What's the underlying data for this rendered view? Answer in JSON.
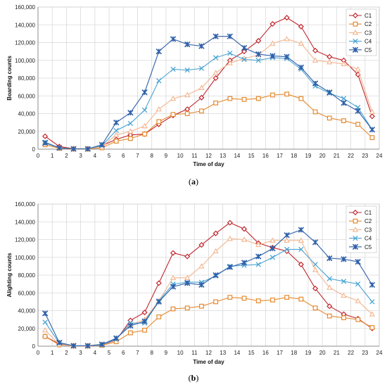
{
  "chart_data": [
    {
      "type": "line",
      "panel_label": "(a)",
      "xlabel": "Time of day",
      "ylabel": "Boarding counts",
      "xlim": [
        0,
        24
      ],
      "ylim": [
        0,
        160000
      ],
      "xticks": [
        0,
        1,
        2,
        3,
        4,
        5,
        6,
        7,
        8,
        9,
        10,
        11,
        12,
        13,
        14,
        15,
        16,
        17,
        18,
        19,
        20,
        21,
        22,
        23,
        24
      ],
      "yticks": [
        0,
        20000,
        40000,
        60000,
        80000,
        100000,
        120000,
        140000,
        160000
      ],
      "ytick_labels": [
        "0",
        "20,000",
        "40,000",
        "60,000",
        "80,000",
        "100,000",
        "120,000",
        "140,000",
        "160,000"
      ],
      "grid": true,
      "legend": "top-right",
      "x": [
        0.5,
        1.5,
        2.5,
        3.5,
        4.5,
        5.5,
        6.5,
        7.5,
        8.5,
        9.5,
        10.5,
        11.5,
        12.5,
        13.5,
        14.5,
        15.5,
        16.5,
        17.5,
        18.5,
        19.5,
        20.5,
        21.5,
        22.5,
        23.5
      ],
      "series": [
        {
          "name": "C1",
          "color": "#c0262d",
          "marker": "diamond",
          "values": [
            14500,
            3000,
            500,
            500,
            4000,
            11000,
            16000,
            17000,
            28000,
            38000,
            45000,
            58000,
            80000,
            100000,
            110000,
            122000,
            141000,
            148000,
            138000,
            111000,
            104000,
            100000,
            84000,
            37000
          ]
        },
        {
          "name": "C2",
          "color": "#e58a2e",
          "marker": "square",
          "values": [
            5000,
            1000,
            200,
            200,
            1500,
            9000,
            12000,
            17000,
            31000,
            39000,
            40000,
            43000,
            52000,
            57000,
            56000,
            57000,
            61000,
            62000,
            57000,
            42000,
            35000,
            32000,
            28000,
            13000
          ]
        },
        {
          "name": "C3",
          "color": "#f3b58e",
          "marker": "triangle",
          "values": [
            7000,
            1500,
            300,
            300,
            3000,
            16000,
            20000,
            26000,
            45000,
            57000,
            61000,
            69000,
            86000,
            97000,
            102000,
            106000,
            119000,
            124000,
            119000,
            100000,
            98000,
            96000,
            90000,
            42000
          ]
        },
        {
          "name": "C4",
          "color": "#4aa4d2",
          "marker": "x",
          "values": [
            8000,
            1500,
            300,
            300,
            4000,
            21000,
            29000,
            44000,
            77000,
            90000,
            89000,
            91000,
            103000,
            108000,
            101000,
            100000,
            103000,
            102000,
            90000,
            71000,
            63000,
            57000,
            47000,
            22000
          ]
        },
        {
          "name": "C5",
          "color": "#2e5fa8",
          "marker": "star",
          "values": [
            7000,
            1500,
            300,
            300,
            5000,
            30000,
            41000,
            64000,
            110000,
            124000,
            118000,
            116000,
            127000,
            127000,
            114000,
            107000,
            105000,
            104000,
            92000,
            74000,
            64000,
            52000,
            43000,
            22000
          ]
        }
      ]
    },
    {
      "type": "line",
      "panel_label": "(b)",
      "xlabel": "Time of day",
      "ylabel": "Alighting counts",
      "xlim": [
        0,
        24
      ],
      "ylim": [
        0,
        160000
      ],
      "xticks": [
        0,
        1,
        2,
        3,
        4,
        5,
        6,
        7,
        8,
        9,
        10,
        11,
        12,
        13,
        14,
        15,
        16,
        17,
        18,
        19,
        20,
        21,
        22,
        23,
        24
      ],
      "yticks": [
        0,
        20000,
        40000,
        60000,
        80000,
        100000,
        120000,
        140000,
        160000
      ],
      "ytick_labels": [
        "0",
        "20,000",
        "40,000",
        "60,000",
        "80,000",
        "100,000",
        "120,000",
        "140,000",
        "160,000"
      ],
      "grid": true,
      "legend": "top-right",
      "x": [
        0.5,
        1.5,
        2.5,
        3.5,
        4.5,
        5.5,
        6.5,
        7.5,
        8.5,
        9.5,
        10.5,
        11.5,
        12.5,
        13.5,
        14.5,
        15.5,
        16.5,
        17.5,
        18.5,
        19.5,
        20.5,
        21.5,
        22.5,
        23.5
      ],
      "series": [
        {
          "name": "C1",
          "color": "#c0262d",
          "marker": "diamond",
          "values": [
            11000,
            2500,
            300,
            300,
            1500,
            7000,
            29000,
            38000,
            71000,
            105000,
            101000,
            114000,
            127000,
            139000,
            132000,
            116000,
            111000,
            107000,
            92000,
            65000,
            45000,
            36000,
            31000,
            20000
          ]
        },
        {
          "name": "C2",
          "color": "#e58a2e",
          "marker": "square",
          "values": [
            11000,
            1500,
            200,
            200,
            1000,
            5000,
            15000,
            18000,
            33000,
            42000,
            43000,
            45000,
            50000,
            55000,
            54000,
            51000,
            52000,
            55000,
            53000,
            43000,
            34000,
            32000,
            30000,
            21000
          ]
        },
        {
          "name": "C3",
          "color": "#f3b58e",
          "marker": "triangle",
          "values": [
            18000,
            2000,
            300,
            300,
            1500,
            8000,
            24000,
            30000,
            51000,
            77000,
            77000,
            90000,
            107000,
            121000,
            120000,
            114000,
            119000,
            119000,
            119000,
            86000,
            66000,
            57000,
            51000,
            36000
          ]
        },
        {
          "name": "C4",
          "color": "#4aa4d2",
          "marker": "x",
          "values": [
            27000,
            3500,
            500,
            500,
            1500,
            8000,
            26000,
            26000,
            51000,
            70000,
            72000,
            72000,
            79000,
            90000,
            91000,
            92000,
            100000,
            109000,
            109000,
            92000,
            76000,
            73000,
            70000,
            50000
          ]
        },
        {
          "name": "C5",
          "color": "#2e5fa8",
          "marker": "star",
          "values": [
            37000,
            4000,
            500,
            500,
            2000,
            9000,
            23000,
            28000,
            50000,
            67000,
            71000,
            69000,
            80000,
            89000,
            94000,
            101000,
            110000,
            125000,
            131000,
            117000,
            99000,
            98000,
            95000,
            69000
          ]
        }
      ]
    }
  ]
}
